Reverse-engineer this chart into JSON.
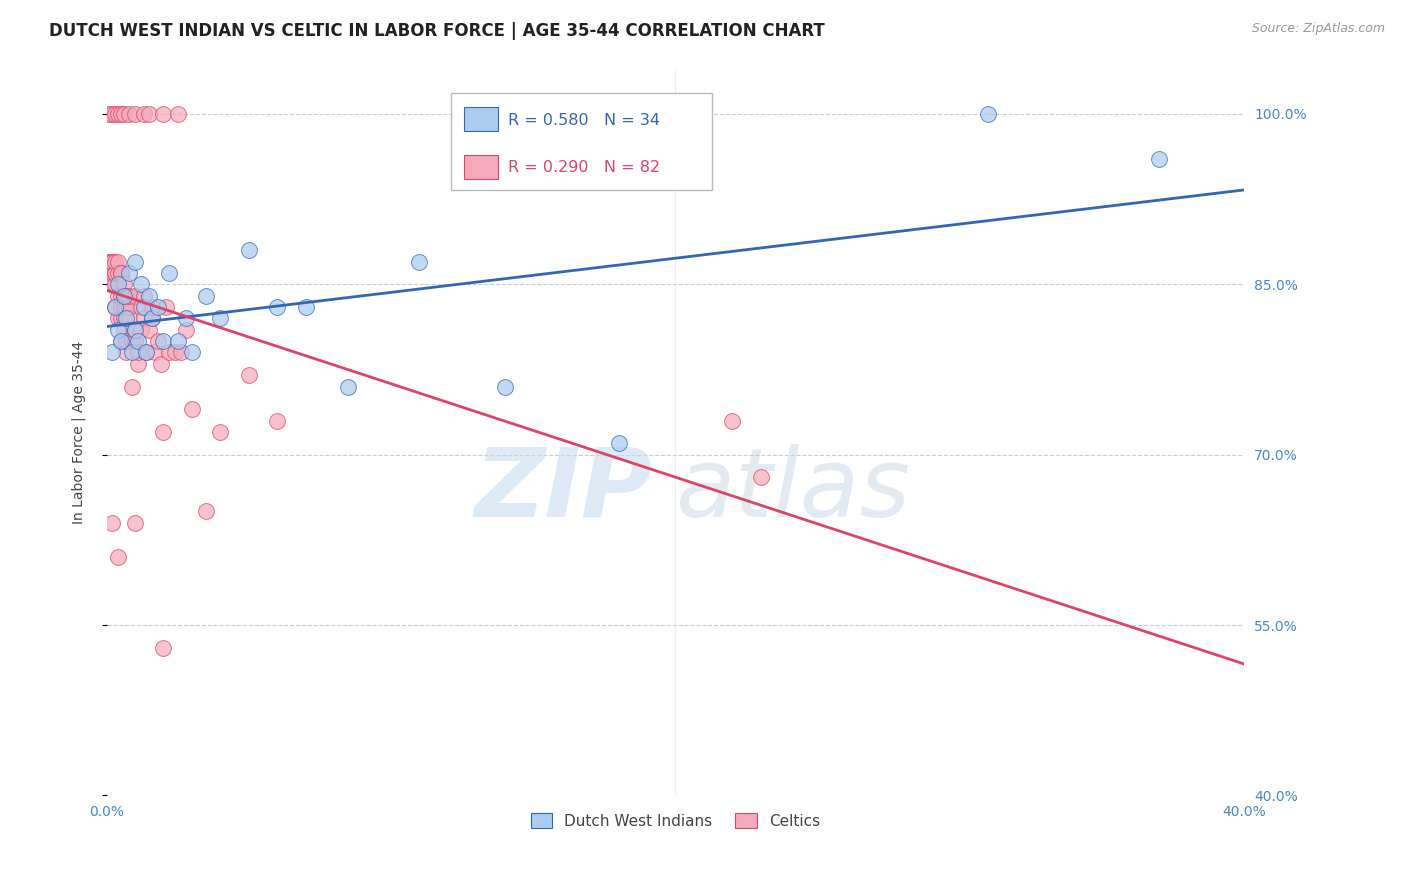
{
  "title": "DUTCH WEST INDIAN VS CELTIC IN LABOR FORCE | AGE 35-44 CORRELATION CHART",
  "source_text": "Source: ZipAtlas.com",
  "ylabel": "In Labor Force | Age 35-44",
  "xmin": 0.0,
  "xmax": 0.4,
  "ymin": 0.4,
  "ymax": 1.04,
  "yticks": [
    1.0,
    0.85,
    0.7,
    0.55,
    0.4
  ],
  "ytick_labels": [
    "100.0%",
    "85.0%",
    "70.0%",
    "55.0%",
    "40.0%"
  ],
  "grid_color": "#cccccc",
  "background_color": "#ffffff",
  "blue_color": "#aaccee",
  "pink_color": "#f4aabb",
  "blue_line_color": "#3366bb",
  "pink_line_color": "#dd4466",
  "legend_blue_label": "Dutch West Indians",
  "legend_pink_label": "Celtics",
  "R_blue": "0.580",
  "N_blue": "34",
  "R_pink": "0.290",
  "N_pink": "82",
  "blue_scatter_x": [
    0.002,
    0.003,
    0.004,
    0.004,
    0.005,
    0.006,
    0.007,
    0.008,
    0.009,
    0.01,
    0.01,
    0.011,
    0.012,
    0.013,
    0.014,
    0.015,
    0.016,
    0.018,
    0.02,
    0.022,
    0.025,
    0.028,
    0.03,
    0.035,
    0.04,
    0.05,
    0.06,
    0.07,
    0.085,
    0.11,
    0.14,
    0.18,
    0.31,
    0.37
  ],
  "blue_scatter_y": [
    0.79,
    0.83,
    0.81,
    0.85,
    0.8,
    0.84,
    0.82,
    0.86,
    0.79,
    0.81,
    0.87,
    0.8,
    0.85,
    0.83,
    0.79,
    0.84,
    0.82,
    0.83,
    0.8,
    0.86,
    0.8,
    0.82,
    0.79,
    0.84,
    0.82,
    0.88,
    0.83,
    0.83,
    0.76,
    0.87,
    0.76,
    0.71,
    1.0,
    0.96
  ],
  "pink_scatter_x": [
    0.001,
    0.001,
    0.001,
    0.002,
    0.002,
    0.002,
    0.002,
    0.002,
    0.003,
    0.003,
    0.003,
    0.003,
    0.003,
    0.004,
    0.004,
    0.004,
    0.004,
    0.005,
    0.005,
    0.005,
    0.005,
    0.005,
    0.005,
    0.006,
    0.006,
    0.006,
    0.006,
    0.006,
    0.007,
    0.007,
    0.007,
    0.007,
    0.008,
    0.008,
    0.008,
    0.009,
    0.009,
    0.01,
    0.01,
    0.01,
    0.011,
    0.011,
    0.012,
    0.012,
    0.013,
    0.013,
    0.014,
    0.015,
    0.016,
    0.016,
    0.017,
    0.018,
    0.019,
    0.02,
    0.021,
    0.022,
    0.024,
    0.026,
    0.028,
    0.03,
    0.035,
    0.04,
    0.05,
    0.06,
    0.001,
    0.002,
    0.003,
    0.004,
    0.005,
    0.006,
    0.008,
    0.01,
    0.013,
    0.015,
    0.02,
    0.025,
    0.002,
    0.004,
    0.01,
    0.02,
    0.22,
    0.23
  ],
  "pink_scatter_y": [
    0.86,
    0.87,
    0.87,
    0.85,
    0.86,
    0.87,
    0.87,
    0.87,
    0.83,
    0.85,
    0.86,
    0.86,
    0.87,
    0.82,
    0.84,
    0.86,
    0.87,
    0.8,
    0.82,
    0.83,
    0.84,
    0.86,
    0.86,
    0.81,
    0.82,
    0.83,
    0.84,
    0.85,
    0.79,
    0.8,
    0.83,
    0.84,
    0.82,
    0.83,
    0.84,
    0.76,
    0.8,
    0.8,
    0.81,
    0.84,
    0.78,
    0.79,
    0.81,
    0.83,
    0.82,
    0.84,
    0.79,
    0.81,
    0.82,
    0.83,
    0.79,
    0.8,
    0.78,
    0.72,
    0.83,
    0.79,
    0.79,
    0.79,
    0.81,
    0.74,
    0.65,
    0.72,
    0.77,
    0.73,
    1.0,
    1.0,
    1.0,
    1.0,
    1.0,
    1.0,
    1.0,
    1.0,
    1.0,
    1.0,
    1.0,
    1.0,
    0.64,
    0.61,
    0.64,
    0.53,
    0.73,
    0.68
  ],
  "title_fontsize": 12,
  "axis_label_fontsize": 10,
  "tick_fontsize": 10,
  "legend_box_color": "#ffffff",
  "legend_box_edge": "#bbbbbb"
}
